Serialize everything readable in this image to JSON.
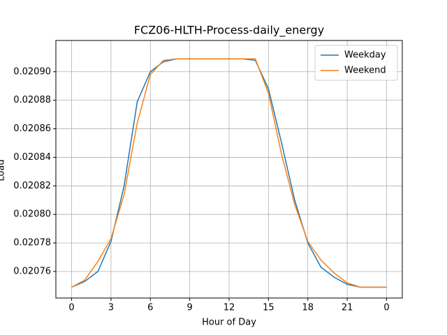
{
  "chart_data": {
    "type": "line",
    "title": "FCZ06-HLTH-Process-daily_energy",
    "xlabel": "Hour of Day",
    "ylabel": "Load",
    "x": [
      0,
      1,
      2,
      3,
      4,
      5,
      6,
      7,
      8,
      9,
      10,
      11,
      12,
      13,
      14,
      15,
      16,
      17,
      18,
      19,
      20,
      21,
      22,
      23,
      24
    ],
    "series": [
      {
        "name": "Weekday",
        "color": "#1f77b4",
        "values": [
          0.020749,
          0.020753,
          0.02076,
          0.020781,
          0.02082,
          0.020879,
          0.0209,
          0.020907,
          0.020909,
          0.020909,
          0.020909,
          0.020909,
          0.020909,
          0.020909,
          0.020908,
          0.020888,
          0.02085,
          0.02081,
          0.02078,
          0.020763,
          0.020756,
          0.020751,
          0.020749,
          0.020749,
          0.020749
        ]
      },
      {
        "name": "Weekend",
        "color": "#ff7f0e",
        "values": [
          0.020749,
          0.020754,
          0.020767,
          0.020783,
          0.020814,
          0.020864,
          0.020898,
          0.020908,
          0.020909,
          0.020909,
          0.020909,
          0.020909,
          0.020909,
          0.020909,
          0.020909,
          0.020885,
          0.020842,
          0.020807,
          0.020781,
          0.020768,
          0.020759,
          0.020752,
          0.020749,
          0.020749,
          0.020749
        ]
      }
    ],
    "xlim": [
      -1.2,
      25.2
    ],
    "xticks": [
      0,
      3,
      6,
      9,
      12,
      15,
      18,
      21,
      {
        "value": 24,
        "label": "0"
      }
    ],
    "ylim": [
      0.0207414,
      0.0209219
    ],
    "yticks": [
      0.02076,
      0.02078,
      {
        "value": 0.0208,
        "label": "0.02080"
      },
      0.02082,
      0.02084,
      0.02086,
      0.02088,
      {
        "value": 0.0209,
        "label": "0.02090"
      }
    ],
    "grid": true,
    "legend": "upper right"
  }
}
